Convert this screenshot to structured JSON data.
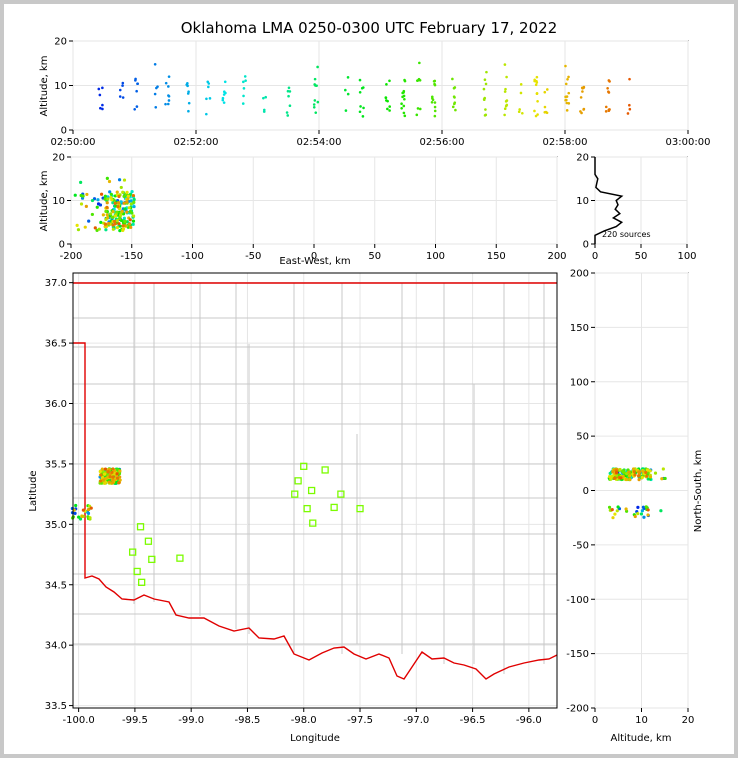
{
  "title": "Oklahoma LMA 0250-0300 UTC February 17, 2022",
  "colors": {
    "state_border": "#e00000",
    "county_lines": "#c8c8c8",
    "stations": "#7cfc00",
    "histogram": "#000000"
  },
  "panels": {
    "time_altitude": {
      "ylabel": "Altitude, km",
      "xticks": [
        "02:50:00",
        "02:52:00",
        "02:54:00",
        "02:56:00",
        "02:58:00",
        "03:00:00"
      ],
      "yticks": [
        "0",
        "10",
        "20"
      ]
    },
    "ew_altitude": {
      "xlabel": "East-West, km",
      "ylabel": "Altitude, km",
      "xticks": [
        "-200",
        "-150",
        "-100",
        "-50",
        "0",
        "50",
        "100",
        "150",
        "200"
      ],
      "yticks": [
        "0",
        "10",
        "20"
      ]
    },
    "histogram": {
      "xticks": [
        "0",
        "50",
        "100"
      ],
      "yticks": [
        "0",
        "10",
        "20"
      ],
      "note": "220 sources"
    },
    "plan": {
      "xlabel": "Longitude",
      "ylabel": "Latitude",
      "xticks": [
        "-100.0",
        "-99.5",
        "-99.0",
        "-98.5",
        "-98.0",
        "-97.5",
        "-97.0",
        "-96.5",
        "-96.0"
      ],
      "yticks": [
        "37.0",
        "36.5",
        "36.0",
        "35.5",
        "35.0",
        "34.5",
        "34.0",
        "33.5"
      ]
    },
    "ns_altitude": {
      "xlabel": "Altitude, km",
      "ylabel": "North-South, km",
      "xticks": [
        "0",
        "10",
        "20"
      ],
      "yticks": [
        "200",
        "150",
        "100",
        "50",
        "0",
        "-50",
        "-100",
        "-150",
        "-200"
      ]
    }
  },
  "chart_data": {
    "type": "scatter",
    "source_count": 220,
    "color_encoding": "time (blue early to red late)",
    "time_range": [
      "02:50:00",
      "03:00:00"
    ],
    "altitude_range_km": [
      0,
      20
    ],
    "east_west_range_km": [
      -200,
      200
    ],
    "north_south_range_km": [
      -200,
      200
    ],
    "longitude_range": [
      -100.05,
      -95.75
    ],
    "latitude_range": [
      33.48,
      37.08
    ],
    "flash_times": [
      "02:50:25",
      "02:50:45",
      "02:51:00",
      "02:51:20",
      "02:51:30",
      "02:51:50",
      "02:52:10",
      "02:52:25",
      "02:52:45",
      "02:53:05",
      "02:53:28",
      "02:53:55",
      "02:54:25",
      "02:54:40",
      "02:55:05",
      "02:55:20",
      "02:55:35",
      "02:55:50",
      "02:56:10",
      "02:56:40",
      "02:57:00",
      "02:57:15",
      "02:57:30",
      "02:57:40",
      "02:58:00",
      "02:58:15",
      "02:58:40",
      "02:59:00"
    ],
    "flash_altitude_range_km": [
      2,
      16
    ],
    "histogram_peak_altitude_km": 8,
    "histogram_peak_count": 20,
    "stations": [
      {
        "lon": -98.0,
        "lat": 35.48
      },
      {
        "lon": -98.05,
        "lat": 35.36
      },
      {
        "lon": -97.81,
        "lat": 35.45
      },
      {
        "lon": -98.08,
        "lat": 35.25
      },
      {
        "lon": -97.93,
        "lat": 35.28
      },
      {
        "lon": -97.97,
        "lat": 35.13
      },
      {
        "lon": -97.92,
        "lat": 35.01
      },
      {
        "lon": -97.67,
        "lat": 35.25
      },
      {
        "lon": -97.73,
        "lat": 35.14
      },
      {
        "lon": -97.5,
        "lat": 35.13
      },
      {
        "lon": -99.45,
        "lat": 34.98
      },
      {
        "lon": -99.38,
        "lat": 34.86
      },
      {
        "lon": -99.52,
        "lat": 34.77
      },
      {
        "lon": -99.35,
        "lat": 34.71
      },
      {
        "lon": -99.1,
        "lat": 34.72
      },
      {
        "lon": -99.48,
        "lat": 34.61
      },
      {
        "lon": -99.44,
        "lat": 34.52
      }
    ],
    "clusters": [
      {
        "lon": -99.72,
        "lat": 35.4,
        "ew_km": -160,
        "ns_km": 15,
        "color": "mixed"
      },
      {
        "lon": -99.97,
        "lat": 35.1,
        "ew_km": -185,
        "ns_km": -20,
        "color": "blue"
      }
    ]
  }
}
